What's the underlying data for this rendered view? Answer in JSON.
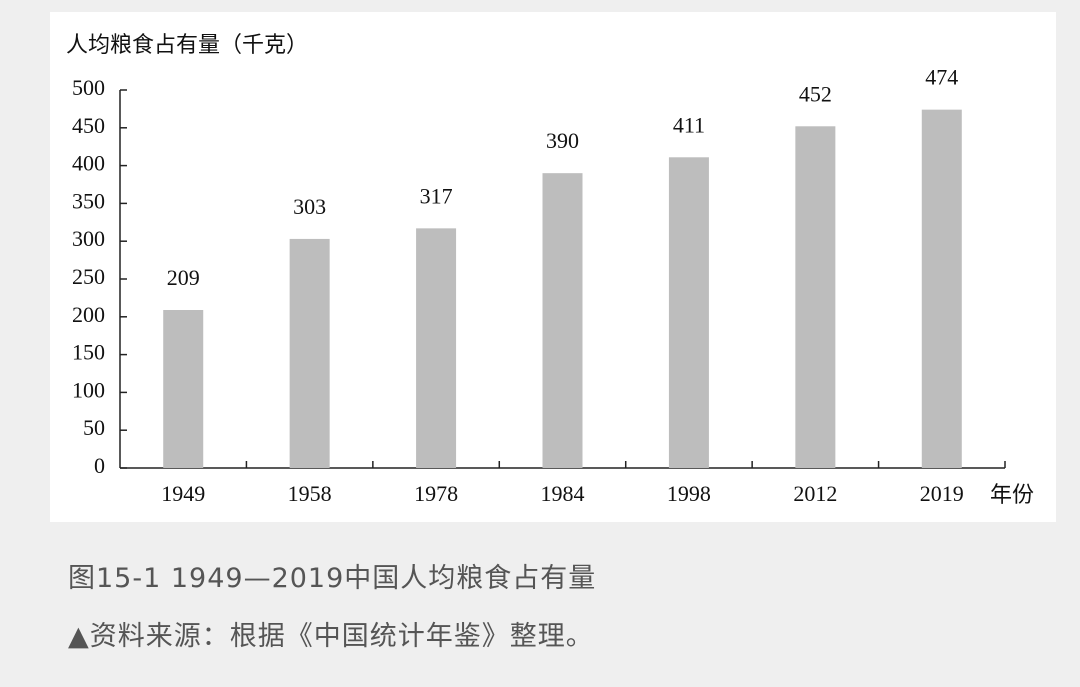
{
  "chart_data": {
    "type": "bar",
    "title": "人均粮食占有量（千克）",
    "x_label": "年份",
    "categories": [
      "1949",
      "1958",
      "1978",
      "1984",
      "1998",
      "2012",
      "2019"
    ],
    "values": [
      209,
      303,
      317,
      390,
      411,
      452,
      474
    ],
    "color": "#bdbdbd",
    "ylim": [
      0,
      500
    ],
    "yticks": [
      0,
      50,
      100,
      150,
      200,
      250,
      300,
      350,
      400,
      450,
      500
    ]
  },
  "caption": {
    "figure": "图15-1 1949—2019中国人均粮食占有量",
    "source": "▲资料来源：根据《中国统计年鉴》整理。"
  }
}
